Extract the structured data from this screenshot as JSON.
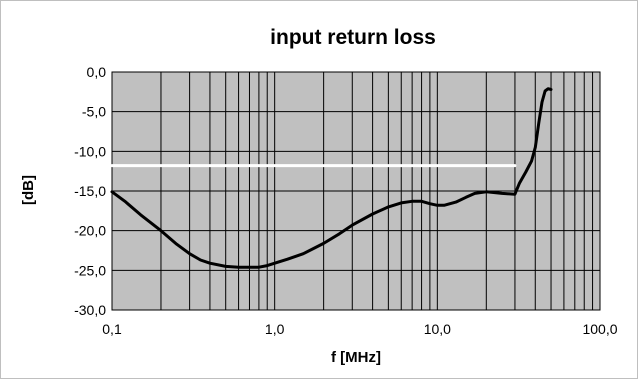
{
  "chart_data": {
    "type": "line",
    "title": "input return loss",
    "xlabel": "f [MHz]",
    "ylabel": "[dB]",
    "x_scale": "log",
    "xlim": [
      0.1,
      100
    ],
    "ylim": [
      -30,
      0
    ],
    "x_ticks": [
      {
        "value": 0.1,
        "label": "0,1"
      },
      {
        "value": 1,
        "label": "1,0"
      },
      {
        "value": 10,
        "label": "10,0"
      },
      {
        "value": 100,
        "label": "100,0"
      }
    ],
    "y_ticks": [
      {
        "value": 0,
        "label": "0,0"
      },
      {
        "value": -5,
        "label": "-5,0"
      },
      {
        "value": -10,
        "label": "-10,0"
      },
      {
        "value": -15,
        "label": "-15,0"
      },
      {
        "value": -20,
        "label": "-20,0"
      },
      {
        "value": -25,
        "label": "-25,0"
      },
      {
        "value": -30,
        "label": "-30,0"
      }
    ],
    "grid": true,
    "plot_background": "#c0c0c0",
    "grid_color": "#000000",
    "series": [
      {
        "color": "#000000",
        "points": [
          [
            0.1,
            -15.1
          ],
          [
            0.12,
            -16.3
          ],
          [
            0.15,
            -18.0
          ],
          [
            0.2,
            -20.0
          ],
          [
            0.25,
            -21.7
          ],
          [
            0.3,
            -22.9
          ],
          [
            0.35,
            -23.7
          ],
          [
            0.4,
            -24.1
          ],
          [
            0.5,
            -24.5
          ],
          [
            0.6,
            -24.6
          ],
          [
            0.7,
            -24.6
          ],
          [
            0.8,
            -24.6
          ],
          [
            0.9,
            -24.4
          ],
          [
            1.0,
            -24.1
          ],
          [
            1.2,
            -23.6
          ],
          [
            1.5,
            -22.9
          ],
          [
            2.0,
            -21.6
          ],
          [
            2.5,
            -20.4
          ],
          [
            3.0,
            -19.3
          ],
          [
            4.0,
            -17.9
          ],
          [
            5.0,
            -17.0
          ],
          [
            6.0,
            -16.5
          ],
          [
            7.0,
            -16.3
          ],
          [
            8.0,
            -16.3
          ],
          [
            9.0,
            -16.6
          ],
          [
            10.0,
            -16.8
          ],
          [
            11.0,
            -16.8
          ],
          [
            13.0,
            -16.4
          ],
          [
            15.0,
            -15.8
          ],
          [
            17.0,
            -15.3
          ],
          [
            20.0,
            -15.1
          ],
          [
            25.0,
            -15.3
          ],
          [
            30.0,
            -15.4
          ],
          [
            32.0,
            -14.0
          ],
          [
            35.0,
            -12.6
          ],
          [
            38.0,
            -11.2
          ],
          [
            40.0,
            -9.5
          ],
          [
            42.0,
            -6.5
          ],
          [
            44.0,
            -3.8
          ],
          [
            46.0,
            -2.4
          ],
          [
            48.0,
            -2.1
          ],
          [
            50.0,
            -2.2
          ]
        ]
      },
      {
        "color": "#ffffff",
        "points": [
          [
            0.1,
            -11.8
          ],
          [
            30.0,
            -11.8
          ]
        ]
      }
    ]
  }
}
